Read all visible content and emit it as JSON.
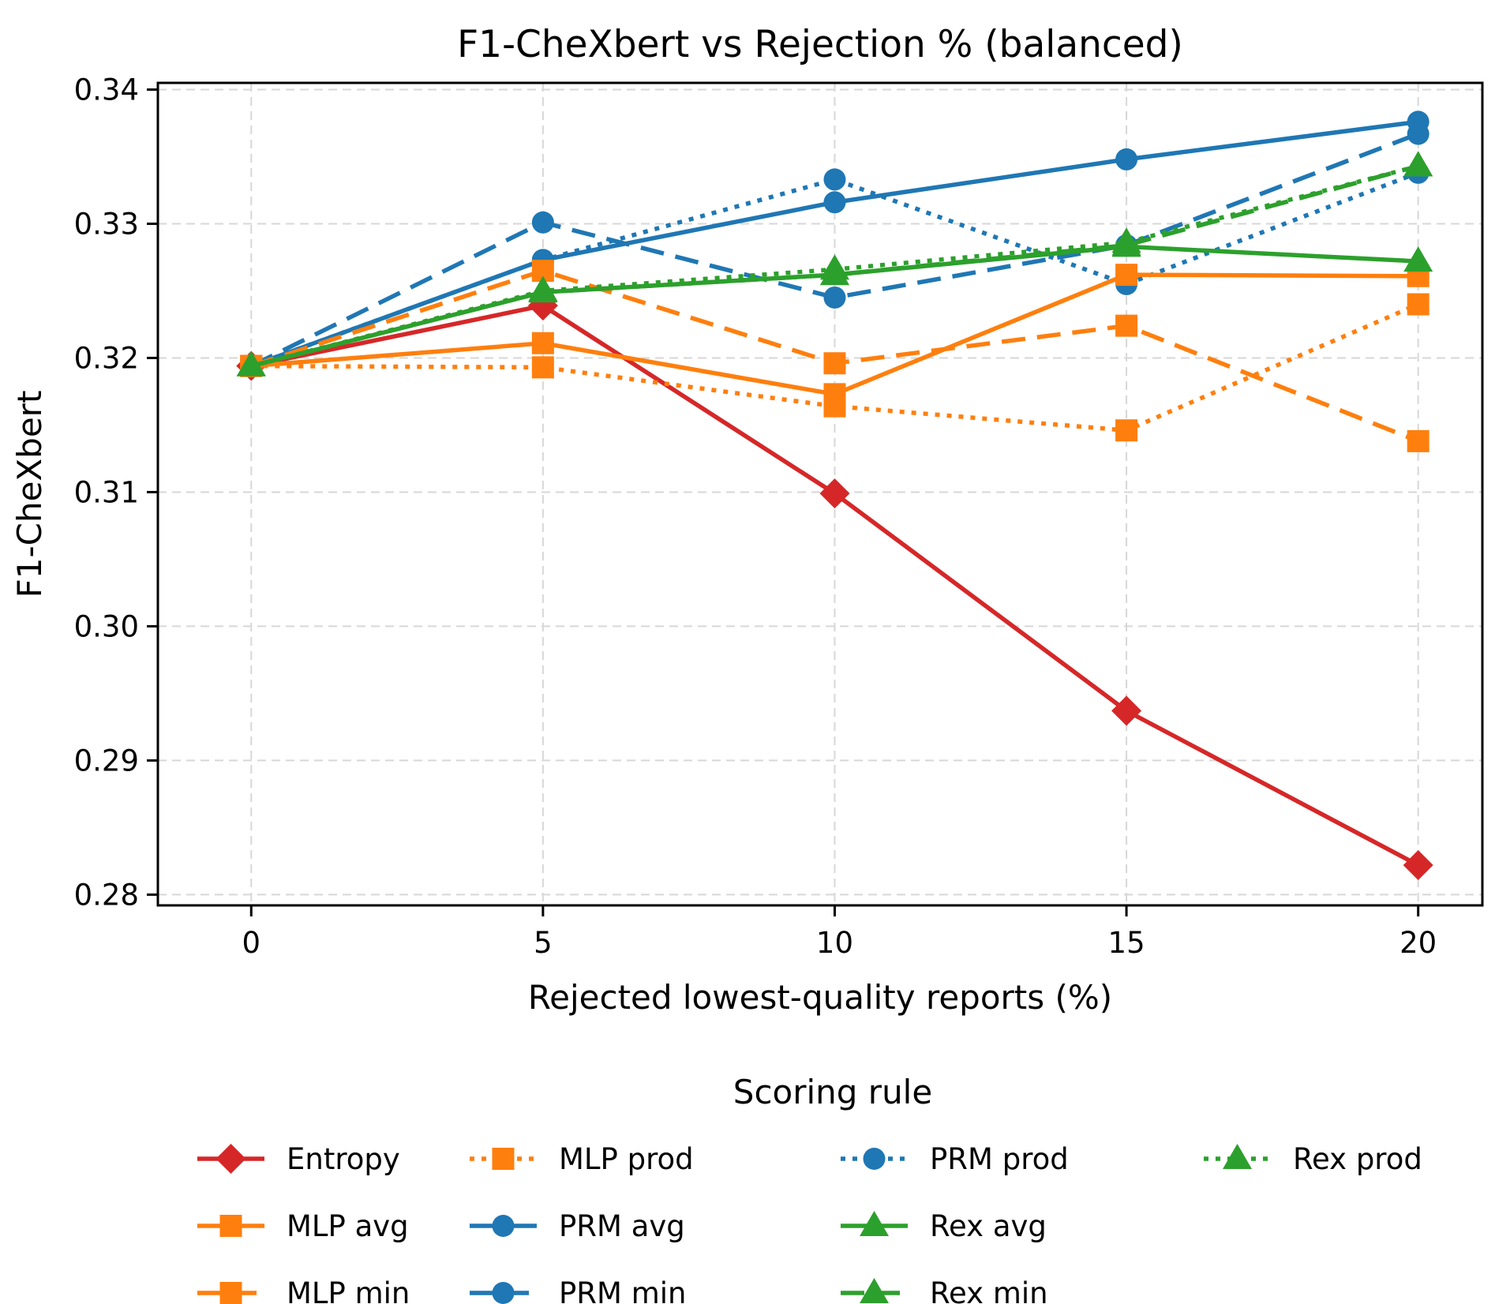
{
  "chart_data": {
    "type": "line",
    "title": "F1-CheXbert vs Rejection % (balanced)",
    "xlabel": "Rejected lowest-quality reports (%)",
    "ylabel": "F1-CheXbert",
    "legend_title": "Scoring rule",
    "x": [
      0,
      5,
      10,
      15,
      20
    ],
    "xticks": [
      0,
      5,
      10,
      15,
      20
    ],
    "xtick_labels": [
      "0",
      "5",
      "10",
      "15",
      "20"
    ],
    "ytick_values": [
      0.28,
      0.29,
      0.3,
      0.31,
      0.32,
      0.33,
      0.34
    ],
    "ytick_labels": [
      "0.28",
      "0.29",
      "0.30",
      "0.31",
      "0.32",
      "0.33",
      "0.34"
    ],
    "xlim": [
      -1.6,
      21.1
    ],
    "ylim": [
      0.2792,
      0.3405
    ],
    "grid": true,
    "grid_color": "#d7d7d7",
    "legend_position": "bottom",
    "series": [
      {
        "name": "Entropy",
        "color": "#d62728",
        "linestyle": "solid",
        "marker": "diamond",
        "values": [
          0.3194,
          0.3239,
          0.3099,
          0.2937,
          0.2822
        ]
      },
      {
        "name": "MLP avg",
        "color": "#ff7f0e",
        "linestyle": "solid",
        "marker": "square",
        "values": [
          0.3194,
          0.3211,
          0.3173,
          0.3262,
          0.3261
        ]
      },
      {
        "name": "MLP min",
        "color": "#ff7f0e",
        "linestyle": "dashed",
        "marker": "square",
        "values": [
          0.3194,
          0.3265,
          0.3196,
          0.3224,
          0.3138
        ]
      },
      {
        "name": "MLP prod",
        "color": "#ff7f0e",
        "linestyle": "dotted",
        "marker": "square",
        "values": [
          0.3194,
          0.3193,
          0.3164,
          0.3146,
          0.324
        ]
      },
      {
        "name": "PRM avg",
        "color": "#1f77b4",
        "linestyle": "solid",
        "marker": "circle",
        "values": [
          0.3194,
          0.3273,
          0.3316,
          0.3348,
          0.3376
        ]
      },
      {
        "name": "PRM min",
        "color": "#1f77b4",
        "linestyle": "dashed",
        "marker": "circle",
        "values": [
          0.3194,
          0.3301,
          0.3245,
          0.3284,
          0.3367
        ]
      },
      {
        "name": "PRM prod",
        "color": "#1f77b4",
        "linestyle": "dotted",
        "marker": "circle",
        "values": [
          0.3194,
          0.3273,
          0.3333,
          0.3255,
          0.3338
        ]
      },
      {
        "name": "Rex avg",
        "color": "#2ca02c",
        "linestyle": "solid",
        "marker": "triangle",
        "values": [
          0.3194,
          0.3249,
          0.3262,
          0.3283,
          0.3272
        ]
      },
      {
        "name": "Rex min",
        "color": "#2ca02c",
        "linestyle": "dashed",
        "marker": "triangle",
        "values": [
          0.3194,
          0.3249,
          0.3262,
          0.3284,
          0.3343
        ]
      },
      {
        "name": "Rex prod",
        "color": "#2ca02c",
        "linestyle": "dotted",
        "marker": "triangle",
        "values": [
          0.3194,
          0.325,
          0.3266,
          0.3286,
          0.3343
        ]
      }
    ],
    "draw_order": [
      0,
      4,
      5,
      6,
      1,
      2,
      3,
      7,
      8,
      9
    ],
    "legend_columns": 4,
    "legend_rows": 3
  }
}
